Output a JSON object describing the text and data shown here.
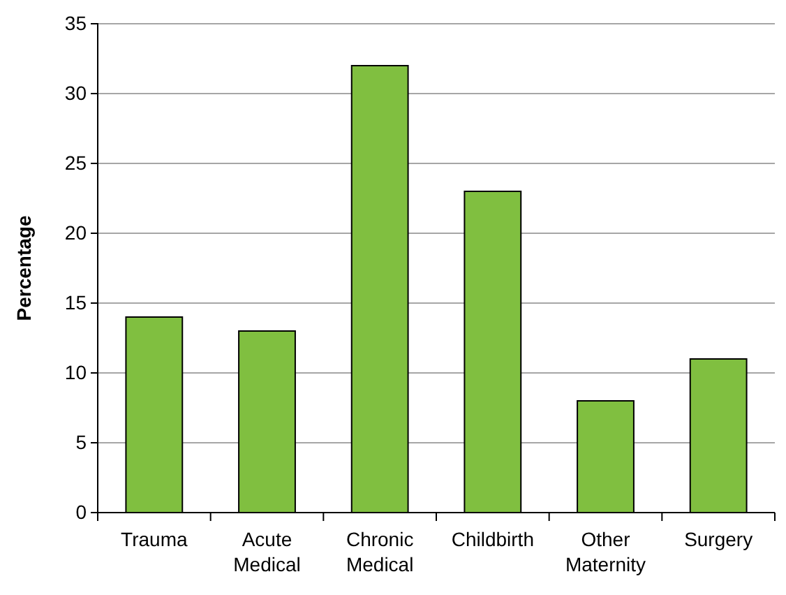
{
  "chart_data": {
    "type": "bar",
    "ylabel": "Percentage",
    "categories": [
      "Trauma",
      "Acute Medical",
      "Chronic Medical",
      "Childbirth",
      "Other Maternity",
      "Surgery"
    ],
    "values": [
      14,
      13,
      32,
      23,
      8,
      11
    ],
    "color": "#80bf40",
    "ylim": [
      0,
      35
    ],
    "yticks": [
      0,
      5,
      10,
      15,
      20,
      25,
      30,
      35
    ],
    "grid": "y"
  }
}
